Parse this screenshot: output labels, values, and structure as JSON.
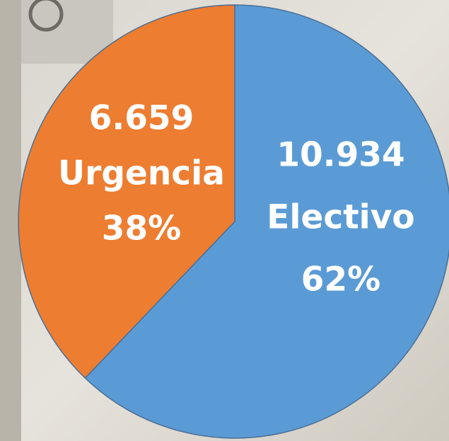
{
  "chart_data": {
    "type": "pie",
    "categories": [
      "Electivo",
      "Urgencia"
    ],
    "values": [
      10934,
      6659
    ],
    "value_labels": [
      "10.934",
      "6.659"
    ],
    "percent_labels": [
      "62%",
      "38%"
    ],
    "colors": [
      "#5b9bd5",
      "#ed7d31"
    ]
  }
}
